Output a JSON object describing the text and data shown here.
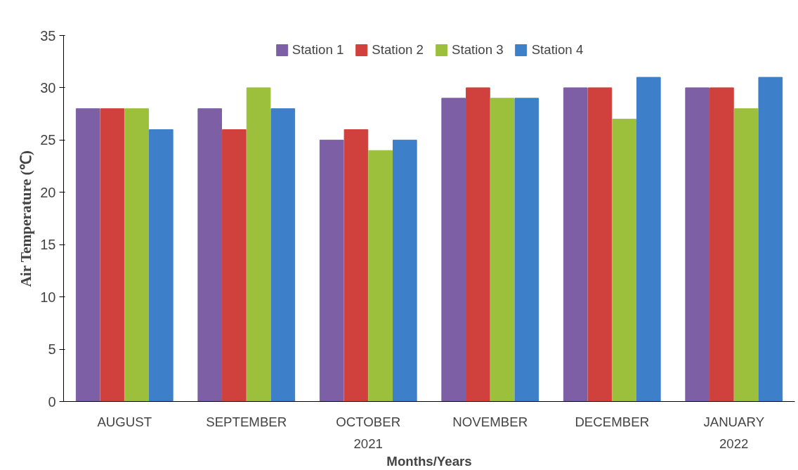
{
  "chart_data": {
    "type": "bar",
    "xlabel": "Months/Years",
    "ylabel": "Air Temperature (℃)",
    "categories": [
      "AUGUST",
      "SEPTEMBER",
      "OCTOBER",
      "NOVEMBER",
      "DECEMBER",
      "JANUARY"
    ],
    "series": [
      {
        "name": "Station 1",
        "color": "#7d5fa6",
        "values": [
          28,
          28,
          25,
          29,
          30,
          30
        ]
      },
      {
        "name": "Station 2",
        "color": "#d0403c",
        "values": [
          28,
          26,
          26,
          30,
          30,
          30
        ]
      },
      {
        "name": "Station 3",
        "color": "#9cc03c",
        "values": [
          28,
          30,
          24,
          29,
          27,
          28
        ]
      },
      {
        "name": "Station 4",
        "color": "#3d7fc8",
        "values": [
          26,
          28,
          25,
          29,
          31,
          31
        ]
      }
    ],
    "annotations": [
      "2021",
      "2022"
    ],
    "ylim": [
      0,
      35
    ],
    "yticks": [
      0,
      5,
      10,
      15,
      20,
      25,
      30,
      35
    ],
    "grid": false,
    "legend": "top"
  }
}
